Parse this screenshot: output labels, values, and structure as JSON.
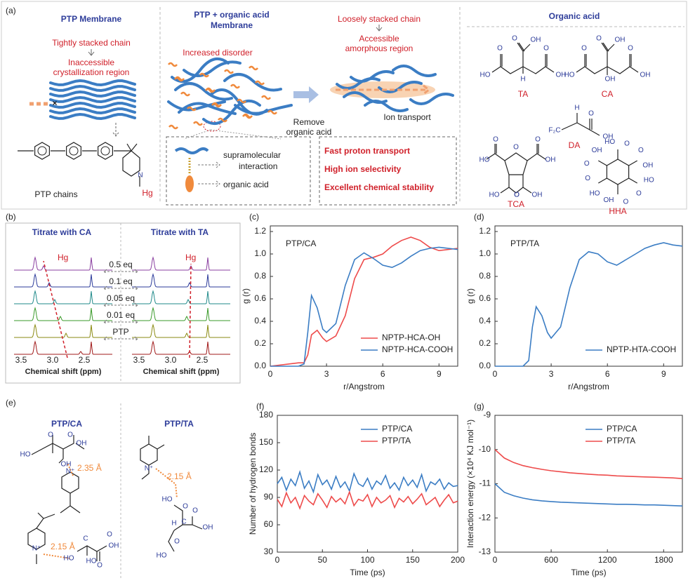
{
  "panels": {
    "a": {
      "label": "(a)",
      "ptp_title": "PTP Membrane",
      "tight": "Tightly stacked chain",
      "inaccessible": [
        "Inaccessible",
        "crystallization region"
      ],
      "chains": "PTP chains",
      "ptp_atoms": [
        "N",
        "Hg"
      ],
      "mid_title": [
        "PTP + organic acid",
        "Membrane"
      ],
      "disorder": "Increased disorder",
      "loose": "Loosely stacked chain",
      "accessible": [
        "Accessible",
        "amorphous region"
      ],
      "remove": [
        "Remove",
        "organic acid"
      ],
      "ion": "Ion transport",
      "legend": [
        [
          "supramolecular",
          "interaction"
        ],
        "organic acid"
      ],
      "features": [
        "Fast proton transport",
        "High ion selectivity",
        "Excellent chemical stability"
      ],
      "acid_title": "Organic acid",
      "acids": [
        {
          "name": "TA",
          "atoms": [
            "O",
            "OH",
            "O",
            "HO",
            "O",
            "OH",
            "H"
          ]
        },
        {
          "name": "CA",
          "atoms": [
            "O",
            "OH",
            "O",
            "HO",
            "O",
            "OH",
            "OH"
          ]
        },
        {
          "name": "DA",
          "atoms": [
            "H",
            "F₂C",
            "O",
            "OH"
          ]
        },
        {
          "name": "TCA",
          "atoms": [
            "O",
            "HO",
            "O",
            "O",
            "OH",
            "HO",
            "O",
            "O",
            "OH"
          ]
        },
        {
          "name": "HHA",
          "atoms": [
            "HO",
            "O",
            "O",
            "OH",
            "HO",
            "O",
            "O",
            "OH",
            "HO",
            "O",
            "O",
            "OH"
          ]
        }
      ]
    },
    "b": {
      "label": "(b)",
      "left_title": "Titrate with CA",
      "right_title": "Titrate with TA",
      "eq": [
        "0.5 eq",
        "0.1 eq",
        "0.05 eq",
        "0.01 eq",
        "PTP"
      ],
      "hg": "Hg",
      "xticks": [
        "3.5",
        "3.0",
        "2.5"
      ],
      "xlabel": "Chemical shift (ppm)"
    },
    "e": {
      "label": "(e)",
      "left_title": "PTP/CA",
      "right_title": "PTP/TA",
      "distances": [
        "2.35 Å",
        "2.15 Å",
        "2.15 Å"
      ],
      "atoms": [
        "O",
        "O",
        "HO",
        "OH",
        "OH",
        "N⁺",
        "N⁺",
        "HO",
        "C",
        "HO",
        "O",
        "OH",
        "O",
        "N⁺",
        "HO",
        "O",
        "H",
        "C",
        "O",
        "OH",
        "HO",
        "O"
      ]
    }
  },
  "chart_data": [
    {
      "type": "line",
      "panel": "(c)",
      "annotation": "PTP/CA",
      "xlabel": "r/Angstrom",
      "ylabel": "g (r)",
      "x": [
        0,
        1,
        1.5,
        1.8,
        2,
        2.2,
        2.5,
        2.8,
        3,
        3.5,
        4,
        4.5,
        5,
        5.5,
        6,
        6.5,
        7,
        7.5,
        8,
        8.5,
        9,
        9.5,
        10
      ],
      "series": [
        {
          "name": "NPTP-HCA-OH",
          "color": "#ee4b4b",
          "values": [
            0,
            0.02,
            0.03,
            0.03,
            0.1,
            0.28,
            0.32,
            0.25,
            0.22,
            0.27,
            0.45,
            0.78,
            0.95,
            0.97,
            1.0,
            1.07,
            1.12,
            1.15,
            1.12,
            1.06,
            1.03,
            1.04,
            1.05
          ]
        },
        {
          "name": "NPTP-HCA-COOH",
          "color": "#3b7dc4",
          "values": [
            0,
            0,
            0,
            0.02,
            0.3,
            0.63,
            0.52,
            0.33,
            0.3,
            0.38,
            0.72,
            0.95,
            1.01,
            0.96,
            0.9,
            0.88,
            0.92,
            0.98,
            1.03,
            1.05,
            1.06,
            1.05,
            1.04
          ]
        }
      ],
      "xlim": [
        0,
        10
      ],
      "ylim": [
        0,
        1.25
      ],
      "xticks": [
        0,
        3,
        6,
        9
      ],
      "yticks": [
        {
          "value": 0,
          "label": "0.0"
        },
        0.2,
        0.4,
        0.6,
        0.8,
        {
          "value": 1,
          "label": "1.0"
        },
        1.2
      ],
      "legend": "lower right"
    },
    {
      "type": "line",
      "panel": "(d)",
      "annotation": "PTP/TA",
      "xlabel": "r/Angstrom",
      "ylabel": "g (r)",
      "x": [
        0,
        1,
        1.5,
        1.8,
        2,
        2.2,
        2.5,
        2.8,
        3,
        3.5,
        4,
        4.5,
        5,
        5.5,
        6,
        6.5,
        7,
        7.5,
        8,
        8.5,
        9,
        9.5,
        10
      ],
      "series": [
        {
          "name": "NPTP-HTA-COOH",
          "color": "#3b7dc4",
          "values": [
            0,
            0,
            0,
            0.05,
            0.35,
            0.53,
            0.45,
            0.3,
            0.25,
            0.35,
            0.7,
            0.95,
            1.02,
            1.0,
            0.93,
            0.9,
            0.95,
            1.0,
            1.05,
            1.08,
            1.1,
            1.08,
            1.07
          ]
        }
      ],
      "xlim": [
        0,
        10
      ],
      "ylim": [
        0,
        1.25
      ],
      "xticks": [
        0,
        3,
        6,
        9
      ],
      "yticks": [
        {
          "value": 0,
          "label": "0.0"
        },
        0.2,
        0.4,
        0.6,
        0.8,
        {
          "value": 1,
          "label": "1.0"
        },
        1.2
      ],
      "legend": "lower right"
    },
    {
      "type": "line",
      "panel": "(f)",
      "xlabel": "Time (ps)",
      "ylabel": "Number of hydrogen bonds",
      "x": [
        0,
        5,
        10,
        15,
        20,
        25,
        30,
        35,
        40,
        45,
        50,
        55,
        60,
        65,
        70,
        75,
        80,
        85,
        90,
        95,
        100,
        105,
        110,
        115,
        120,
        125,
        130,
        135,
        140,
        145,
        150,
        155,
        160,
        165,
        170,
        175,
        180,
        185,
        190,
        195,
        200
      ],
      "series": [
        {
          "name": "PTP/CA",
          "color": "#3b7dc4",
          "values": [
            105,
            112,
            98,
            110,
            103,
            118,
            100,
            108,
            96,
            115,
            104,
            109,
            99,
            113,
            101,
            107,
            97,
            116,
            105,
            102,
            111,
            99,
            108,
            104,
            114,
            100,
            106,
            98,
            112,
            103,
            109,
            101,
            115,
            97,
            107,
            104,
            110,
            99,
            106,
            102,
            103
          ]
        },
        {
          "name": "PTP/TA",
          "color": "#ee4b4b",
          "values": [
            88,
            80,
            95,
            84,
            90,
            78,
            92,
            86,
            82,
            94,
            87,
            79,
            91,
            85,
            89,
            83,
            96,
            81,
            88,
            86,
            93,
            80,
            90,
            84,
            87,
            92,
            79,
            89,
            85,
            91,
            83,
            88,
            94,
            82,
            86,
            90,
            80,
            87,
            93,
            84,
            86
          ]
        }
      ],
      "xlim": [
        0,
        200
      ],
      "ylim": [
        30,
        180
      ],
      "xticks": [
        0,
        50,
        100,
        150,
        200
      ],
      "yticks": [
        30,
        60,
        90,
        120,
        150,
        180
      ],
      "legend": "upper right"
    },
    {
      "type": "line",
      "panel": "(g)",
      "xlabel": "Time (ps)",
      "ylabel": "Interaction energy (×10⁴ KJ mol⁻¹)",
      "x": [
        0,
        100,
        200,
        300,
        400,
        500,
        600,
        700,
        800,
        900,
        1000,
        1100,
        1200,
        1300,
        1400,
        1500,
        1600,
        1700,
        1800,
        1900,
        2000
      ],
      "series": [
        {
          "name": "PTP/CA",
          "color": "#3b7dc4",
          "values": [
            -11.0,
            -11.25,
            -11.35,
            -11.42,
            -11.47,
            -11.5,
            -11.52,
            -11.54,
            -11.55,
            -11.56,
            -11.57,
            -11.58,
            -11.59,
            -11.6,
            -11.6,
            -11.61,
            -11.62,
            -11.62,
            -11.63,
            -11.64,
            -11.65
          ]
        },
        {
          "name": "PTP/TA",
          "color": "#ee4b4b",
          "values": [
            -10.0,
            -10.25,
            -10.38,
            -10.47,
            -10.53,
            -10.58,
            -10.62,
            -10.65,
            -10.68,
            -10.7,
            -10.72,
            -10.74,
            -10.75,
            -10.77,
            -10.78,
            -10.79,
            -10.8,
            -10.81,
            -10.82,
            -10.83,
            -10.85
          ]
        }
      ],
      "xlim": [
        0,
        2000
      ],
      "ylim": [
        -13,
        -9
      ],
      "xticks": [
        0,
        600,
        1200,
        1800
      ],
      "yticks": [
        -13,
        -12,
        -11,
        -10,
        -9
      ],
      "legend": "upper right"
    }
  ]
}
